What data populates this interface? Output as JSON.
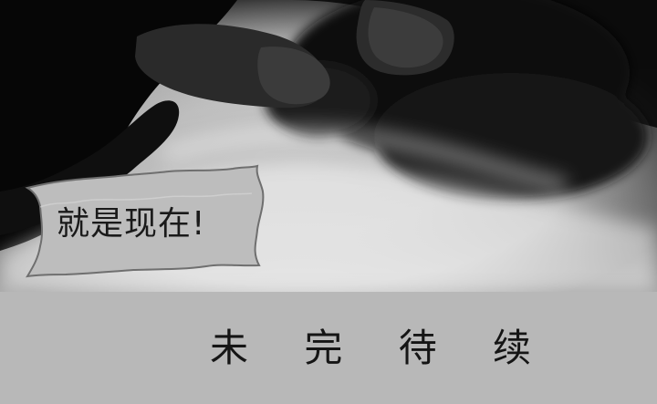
{
  "speech": {
    "text": "就是现在!"
  },
  "footer": {
    "text": "未 完 待 续"
  }
}
